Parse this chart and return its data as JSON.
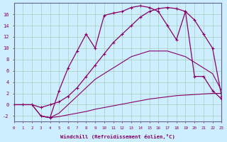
{
  "background_color": "#cceeff",
  "grid_color": "#aaccbb",
  "line_color": "#880066",
  "xlabel": "Windchill (Refroidissement éolien,°C)",
  "xlim": [
    0,
    23
  ],
  "ylim": [
    -3,
    18
  ],
  "ytick_vals": [
    -2,
    0,
    2,
    4,
    6,
    8,
    10,
    12,
    14,
    16
  ],
  "curve1_x": [
    0,
    1,
    2,
    3,
    4,
    5,
    6,
    7,
    8,
    9,
    10,
    11,
    12,
    13,
    14,
    15,
    16,
    17,
    18,
    19,
    20,
    21,
    22,
    23
  ],
  "curve1_y": [
    0,
    0,
    0,
    -2,
    -2.3,
    -2.1,
    -1.8,
    -1.5,
    -1.2,
    -0.8,
    -0.5,
    -0.2,
    0.1,
    0.4,
    0.7,
    1.0,
    1.2,
    1.4,
    1.6,
    1.7,
    1.8,
    1.9,
    2.0,
    2.0
  ],
  "curve2_x": [
    0,
    1,
    2,
    3,
    4,
    5,
    6,
    7,
    8,
    9,
    10,
    11,
    12,
    13,
    14,
    15,
    16,
    17,
    18,
    19,
    20,
    21,
    22,
    23
  ],
  "curve2_y": [
    0,
    0,
    0,
    -2,
    -2.3,
    -1.5,
    0.0,
    1.5,
    3.0,
    4.5,
    5.5,
    6.5,
    7.5,
    8.5,
    9.0,
    9.5,
    9.5,
    9.5,
    9.0,
    8.5,
    7.5,
    6.5,
    5.5,
    2.5
  ],
  "curve3_x": [
    3,
    4,
    5,
    6,
    7,
    8,
    9,
    10,
    11,
    12,
    13,
    14,
    15,
    16,
    17,
    18,
    19,
    20,
    21,
    22,
    23
  ],
  "curve3_y": [
    -2,
    -2.3,
    2.5,
    6.5,
    9.5,
    12.5,
    10.0,
    15.8,
    16.2,
    16.5,
    17.2,
    17.5,
    17.2,
    16.5,
    14.0,
    11.5,
    16.5,
    5.0,
    5.0,
    2.5,
    1.0
  ],
  "curve4_x": [
    0,
    1,
    2,
    3,
    4,
    5,
    6,
    7,
    8,
    9,
    10,
    11,
    12,
    13,
    14,
    15,
    16,
    17,
    18,
    19,
    20,
    21,
    22,
    23
  ],
  "curve4_y": [
    0,
    0,
    0,
    -0.5,
    0,
    0.5,
    1.5,
    3.0,
    5.0,
    7.0,
    9.0,
    11.0,
    12.5,
    14.0,
    15.5,
    16.5,
    17.0,
    17.2,
    17.0,
    16.5,
    15.0,
    12.5,
    10.0,
    1.5
  ]
}
